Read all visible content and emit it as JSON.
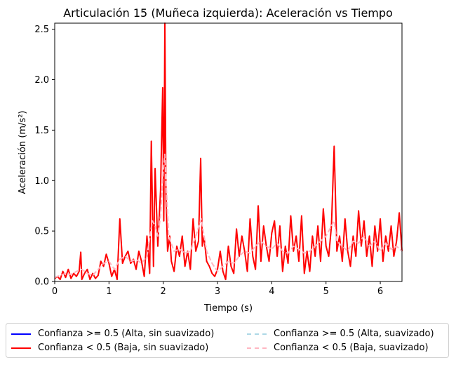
{
  "chart_data": {
    "type": "line",
    "title": "Articulación 15 (Muñeca izquierda): Aceleración vs Tiempo",
    "xlabel": "Tiempo (s)",
    "ylabel": "Aceleración (m/s²)",
    "xlim": [
      0,
      6.4
    ],
    "ylim": [
      0,
      2.56
    ],
    "x_ticks": [
      0,
      1,
      2,
      3,
      4,
      5,
      6
    ],
    "y_ticks": [
      0.0,
      0.5,
      1.0,
      1.5,
      2.0,
      2.5
    ],
    "x_tick_labels": [
      "0",
      "1",
      "2",
      "3",
      "4",
      "5",
      "6"
    ],
    "y_tick_labels": [
      "0.0",
      "0.5",
      "1.0",
      "1.5",
      "2.0",
      "2.5"
    ],
    "grid": false,
    "legend_position": "bottom",
    "series": [
      {
        "name": "Confianza >= 0.5 (Alta, sin suavizado)",
        "color": "#0000ff",
        "style": "solid",
        "x": [],
        "y": []
      },
      {
        "name": "Confianza < 0.5 (Baja, sin suavizado)",
        "color": "#ff0000",
        "style": "solid",
        "x": [
          0,
          0.05,
          0.1,
          0.15,
          0.2,
          0.25,
          0.3,
          0.35,
          0.4,
          0.45,
          0.48,
          0.5,
          0.55,
          0.6,
          0.65,
          0.7,
          0.75,
          0.8,
          0.85,
          0.9,
          0.95,
          1.0,
          1.05,
          1.1,
          1.15,
          1.2,
          1.25,
          1.3,
          1.35,
          1.4,
          1.45,
          1.5,
          1.55,
          1.6,
          1.65,
          1.7,
          1.75,
          1.78,
          1.82,
          1.85,
          1.9,
          1.95,
          1.99,
          2.01,
          2.03,
          2.05,
          2.08,
          2.12,
          2.15,
          2.2,
          2.25,
          2.3,
          2.35,
          2.4,
          2.45,
          2.5,
          2.55,
          2.6,
          2.65,
          2.69,
          2.72,
          2.75,
          2.8,
          2.85,
          2.9,
          2.95,
          3.0,
          3.05,
          3.1,
          3.15,
          3.2,
          3.25,
          3.3,
          3.35,
          3.4,
          3.45,
          3.5,
          3.55,
          3.6,
          3.65,
          3.7,
          3.75,
          3.8,
          3.85,
          3.9,
          3.95,
          4.0,
          4.05,
          4.1,
          4.15,
          4.2,
          4.25,
          4.3,
          4.35,
          4.4,
          4.45,
          4.5,
          4.55,
          4.6,
          4.65,
          4.7,
          4.75,
          4.8,
          4.85,
          4.9,
          4.95,
          5.0,
          5.05,
          5.1,
          5.15,
          5.2,
          5.25,
          5.3,
          5.35,
          5.4,
          5.45,
          5.5,
          5.55,
          5.6,
          5.65,
          5.7,
          5.75,
          5.8,
          5.85,
          5.9,
          5.95,
          6.0,
          6.05,
          6.1,
          6.15,
          6.2,
          6.25,
          6.3,
          6.35,
          6.4
        ],
        "y": [
          0.03,
          0.05,
          0.02,
          0.1,
          0.04,
          0.12,
          0.03,
          0.08,
          0.05,
          0.1,
          0.29,
          0.02,
          0.08,
          0.12,
          0.02,
          0.08,
          0.03,
          0.06,
          0.2,
          0.15,
          0.27,
          0.18,
          0.05,
          0.12,
          0.02,
          0.62,
          0.18,
          0.25,
          0.3,
          0.18,
          0.22,
          0.12,
          0.3,
          0.2,
          0.05,
          0.45,
          0.08,
          1.39,
          0.15,
          1.12,
          0.35,
          0.9,
          1.92,
          0.6,
          2.56,
          0.85,
          0.3,
          0.45,
          0.2,
          0.1,
          0.35,
          0.25,
          0.45,
          0.15,
          0.3,
          0.12,
          0.62,
          0.3,
          0.4,
          1.22,
          0.35,
          0.45,
          0.2,
          0.15,
          0.08,
          0.05,
          0.12,
          0.3,
          0.1,
          0.02,
          0.35,
          0.15,
          0.08,
          0.52,
          0.25,
          0.45,
          0.3,
          0.1,
          0.62,
          0.25,
          0.12,
          0.75,
          0.2,
          0.55,
          0.35,
          0.2,
          0.48,
          0.6,
          0.25,
          0.55,
          0.1,
          0.35,
          0.18,
          0.65,
          0.3,
          0.45,
          0.2,
          0.65,
          0.08,
          0.3,
          0.1,
          0.45,
          0.25,
          0.55,
          0.2,
          0.72,
          0.35,
          0.25,
          0.55,
          1.34,
          0.3,
          0.45,
          0.2,
          0.62,
          0.3,
          0.15,
          0.45,
          0.25,
          0.7,
          0.35,
          0.6,
          0.25,
          0.45,
          0.15,
          0.55,
          0.3,
          0.62,
          0.2,
          0.45,
          0.3,
          0.55,
          0.25,
          0.4,
          0.68,
          0.3
        ]
      },
      {
        "name": "Confianza >= 0.5 (Alta, suavizado)",
        "color": "#add8e6",
        "style": "dashed",
        "x": [],
        "y": []
      },
      {
        "name": "Confianza < 0.5 (Baja, suavizado)",
        "color": "#ffb6c1",
        "style": "dashed",
        "x": [
          0,
          0.1,
          0.2,
          0.3,
          0.4,
          0.5,
          0.6,
          0.7,
          0.8,
          0.9,
          1.0,
          1.1,
          1.2,
          1.3,
          1.4,
          1.5,
          1.6,
          1.7,
          1.8,
          1.85,
          1.9,
          1.95,
          2.0,
          2.03,
          2.06,
          2.1,
          2.2,
          2.3,
          2.4,
          2.5,
          2.6,
          2.7,
          2.8,
          2.9,
          3.0,
          3.1,
          3.2,
          3.3,
          3.4,
          3.5,
          3.6,
          3.7,
          3.8,
          3.9,
          4.0,
          4.1,
          4.2,
          4.3,
          4.4,
          4.5,
          4.6,
          4.7,
          4.8,
          4.9,
          5.0,
          5.1,
          5.15,
          5.2,
          5.3,
          5.4,
          5.5,
          5.6,
          5.7,
          5.8,
          5.9,
          6.0,
          6.1,
          6.2,
          6.3,
          6.4
        ],
        "y": [
          0.04,
          0.06,
          0.08,
          0.07,
          0.1,
          0.12,
          0.08,
          0.06,
          0.12,
          0.18,
          0.2,
          0.12,
          0.22,
          0.25,
          0.2,
          0.22,
          0.18,
          0.25,
          0.6,
          0.55,
          0.45,
          0.65,
          1.1,
          1.26,
          0.9,
          0.45,
          0.3,
          0.32,
          0.28,
          0.3,
          0.45,
          0.62,
          0.3,
          0.18,
          0.1,
          0.15,
          0.2,
          0.18,
          0.25,
          0.3,
          0.28,
          0.35,
          0.4,
          0.35,
          0.32,
          0.38,
          0.3,
          0.28,
          0.35,
          0.32,
          0.28,
          0.3,
          0.35,
          0.4,
          0.45,
          0.55,
          0.6,
          0.4,
          0.35,
          0.3,
          0.4,
          0.38,
          0.45,
          0.35,
          0.4,
          0.3,
          0.38,
          0.32,
          0.35,
          0.3
        ]
      }
    ]
  }
}
